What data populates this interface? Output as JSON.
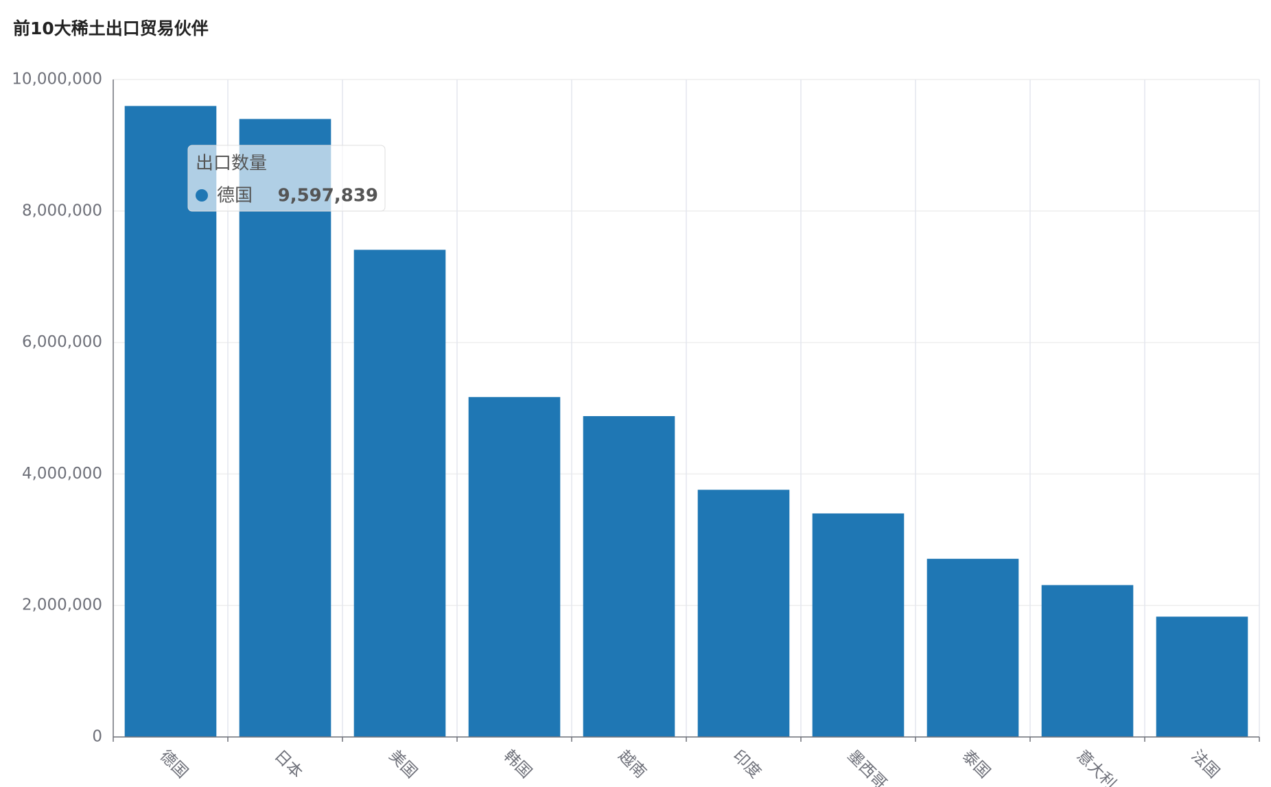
{
  "chart_data": {
    "type": "bar",
    "title": "前10大稀土出口贸易伙伴",
    "categories": [
      "德国",
      "日本",
      "美国",
      "韩国",
      "越南",
      "印度",
      "墨西哥",
      "泰国",
      "意大利",
      "法国"
    ],
    "series": [
      {
        "name": "出口数量",
        "color": "#1f77b4",
        "values": [
          9597839,
          9400000,
          7410000,
          5170000,
          4880000,
          3760000,
          3400000,
          2710000,
          2310000,
          1830000
        ]
      }
    ],
    "ylim": [
      0,
      10000000
    ],
    "yticks": [
      0,
      {
        "value": 2000000,
        "label": "2,000,000"
      },
      {
        "value": 4000000,
        "label": "4,000,000"
      },
      {
        "value": 6000000,
        "label": "6,000,000"
      },
      {
        "value": 8000000,
        "label": "8,000,000"
      },
      {
        "value": 10000000,
        "label": "10,000,000"
      }
    ],
    "grid": true,
    "tooltip": {
      "index": 0,
      "value_label": "9,597,839"
    }
  }
}
